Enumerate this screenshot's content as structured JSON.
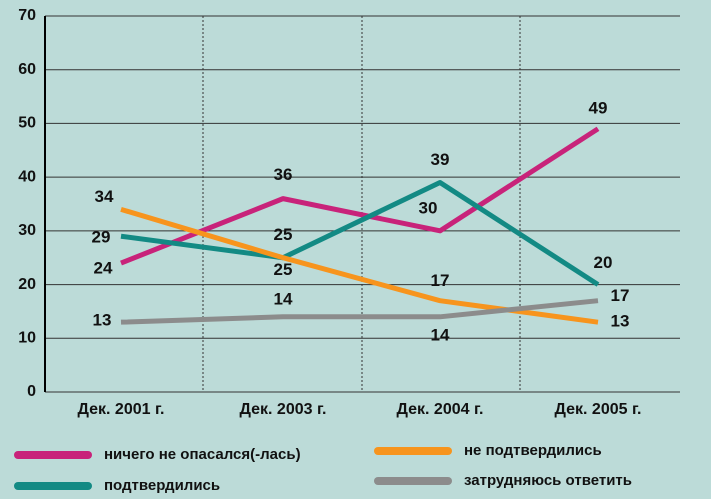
{
  "chart_data": {
    "type": "line",
    "categories": [
      "Дек. 2001 г.",
      "Дек. 2003 г.",
      "Дек. 2004 г.",
      "Дек. 2005 г."
    ],
    "series": [
      {
        "name": "ничего не опасался(-лась)",
        "color": "#c8237a",
        "values": [
          24,
          36,
          30,
          49
        ]
      },
      {
        "name": "подтвердились",
        "color": "#138a84",
        "values": [
          29,
          25,
          39,
          20
        ]
      },
      {
        "name": "не подтвердились",
        "color": "#f7941d",
        "values": [
          34,
          25,
          17,
          13
        ]
      },
      {
        "name": "затрудняюсь ответить",
        "color": "#8c8c8c",
        "values": [
          13,
          14,
          14,
          17
        ]
      }
    ],
    "ylim": [
      0,
      70
    ],
    "yticks": [
      0,
      10,
      20,
      30,
      40,
      50,
      60,
      70
    ],
    "grid": true
  }
}
